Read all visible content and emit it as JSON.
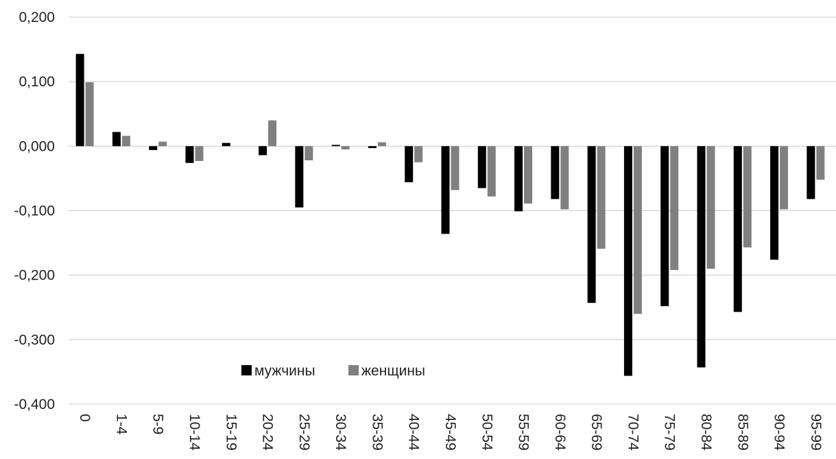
{
  "chart_data": {
    "type": "bar",
    "title": "",
    "xlabel": "",
    "ylabel": "",
    "ylim": [
      -0.4,
      0.2
    ],
    "yticks": [
      0.2,
      0.1,
      0.0,
      -0.1,
      -0.2,
      -0.3,
      -0.4
    ],
    "ytick_labels": [
      "0,200",
      "0,100",
      "0,000",
      "-0,100",
      "-0,200",
      "-0,300",
      "-0,400"
    ],
    "grid": true,
    "legend_position": "bottom-left",
    "categories": [
      "0",
      "1-4",
      "5-9",
      "10-14",
      "15-19",
      "20-24",
      "25-29",
      "30-34",
      "35-39",
      "40-44",
      "45-49",
      "50-54",
      "55-59",
      "60-64",
      "65-69",
      "70-74",
      "75-79",
      "80-84",
      "85-89",
      "90-94",
      "95-99"
    ],
    "series": [
      {
        "name": "мужчины",
        "color": "#000000",
        "values": [
          0.143,
          0.022,
          -0.006,
          -0.026,
          0.005,
          -0.014,
          -0.095,
          0.002,
          -0.003,
          -0.056,
          -0.136,
          -0.065,
          -0.101,
          -0.082,
          -0.243,
          -0.356,
          -0.248,
          -0.343,
          -0.257,
          -0.176,
          -0.082
        ]
      },
      {
        "name": "женщины",
        "color": "#808080",
        "values": [
          0.099,
          0.016,
          0.007,
          -0.023,
          0.0,
          0.04,
          -0.022,
          -0.005,
          0.006,
          -0.025,
          -0.068,
          -0.078,
          -0.089,
          -0.098,
          -0.159,
          -0.26,
          -0.192,
          -0.19,
          -0.157,
          -0.098,
          -0.052
        ]
      }
    ]
  }
}
